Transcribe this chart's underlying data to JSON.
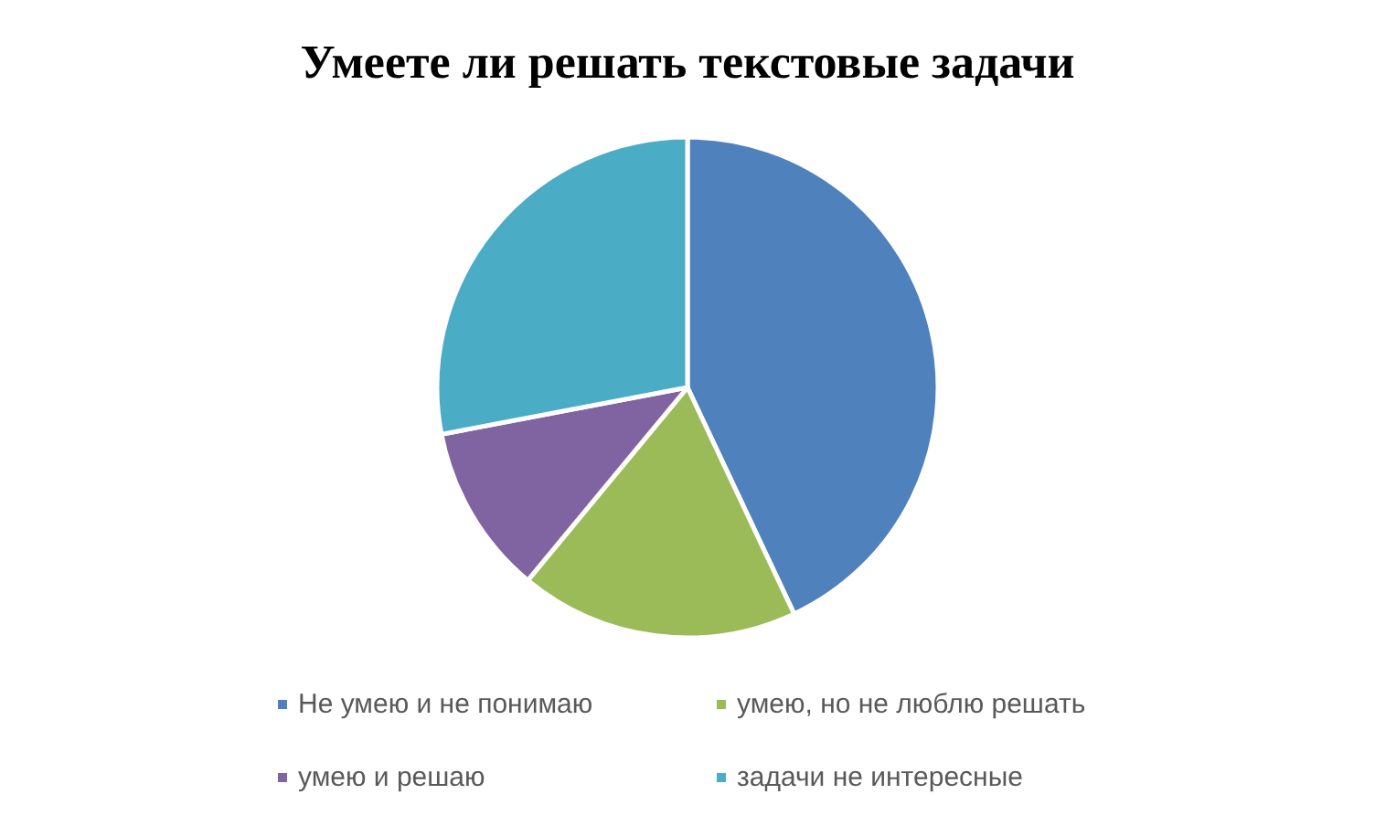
{
  "chart_data": {
    "type": "pie",
    "title": "Умеете ли решать текстовые задачи",
    "categories": [
      "Не умею и не понимаю",
      "умею, но не люблю решать",
      "умею и решаю",
      "задачи не интересные"
    ],
    "values": [
      43,
      18,
      11,
      28
    ],
    "colors": [
      "#4f81bd",
      "#9bbb59",
      "#8064a2",
      "#4bacc6"
    ],
    "legend": "bottom"
  }
}
